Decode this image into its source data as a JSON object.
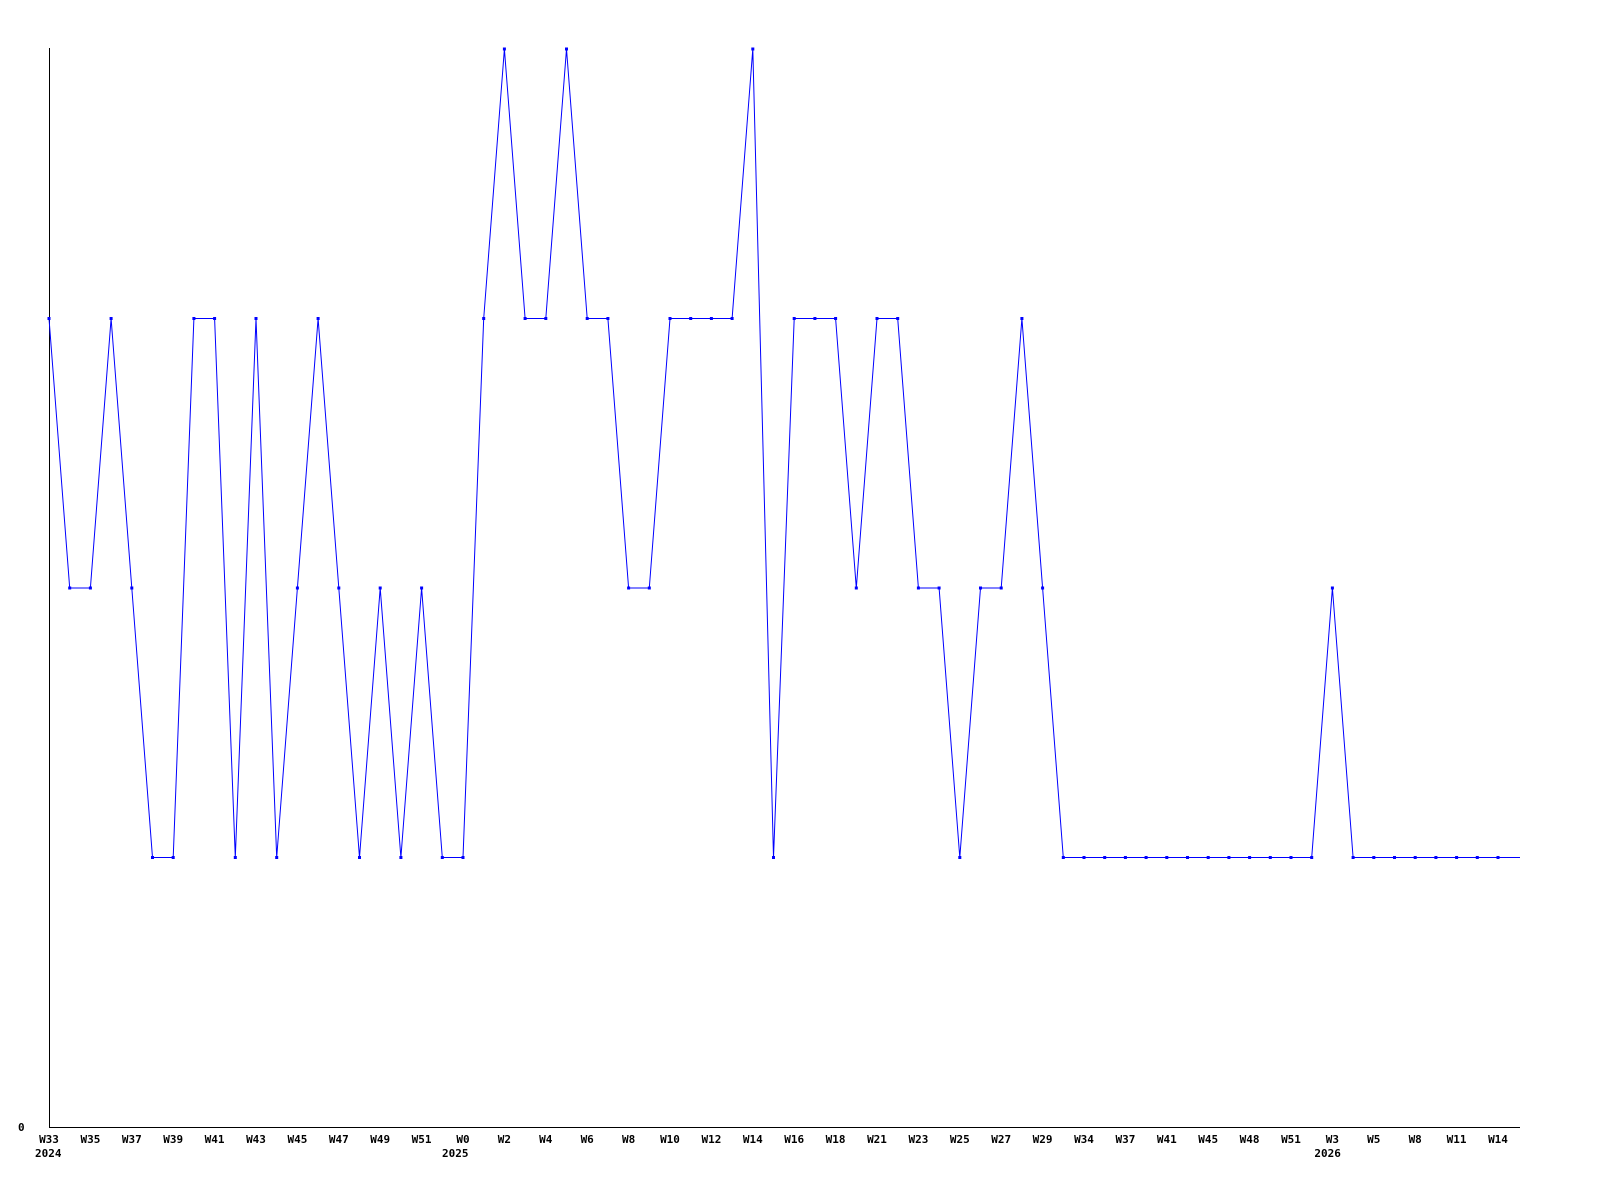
{
  "chart_data": {
    "type": "line",
    "title": "",
    "xlabel": "",
    "ylabel": "",
    "ylim": [
      0,
      4
    ],
    "y_tick_labels": [
      "0"
    ],
    "grid": false,
    "line_color": "#0000ff",
    "axis_color": "#000000",
    "categories": [
      "W33",
      "",
      "W35",
      "",
      "W37",
      "",
      "W39",
      "",
      "W41",
      "",
      "W43",
      "",
      "W45",
      "",
      "W47",
      "",
      "W49",
      "",
      "W51",
      "",
      "W0",
      "",
      "W2",
      "",
      "W4",
      "",
      "W6",
      "",
      "W8",
      "",
      "W10",
      "",
      "W12",
      "",
      "W14",
      "",
      "W16",
      "",
      "W18",
      "",
      "W21",
      "",
      "W23",
      "",
      "W25",
      "",
      "W27",
      "",
      "W29",
      "",
      "W34",
      "",
      "W37",
      "",
      "W41",
      "",
      "W45",
      "",
      "W48",
      "",
      "W51",
      "",
      "W3",
      "",
      "W5",
      "",
      "W8",
      "",
      "W11",
      "",
      "W14",
      ""
    ],
    "year_labels": [
      {
        "index": 0,
        "label": "2024"
      },
      {
        "index": 20,
        "label": "2025"
      },
      {
        "index": 62,
        "label": "2026"
      }
    ],
    "values": [
      3,
      2,
      2,
      3,
      2,
      1,
      1,
      3,
      3,
      1,
      3,
      1,
      2,
      3,
      2,
      1,
      2,
      1,
      2,
      1,
      1,
      3,
      4,
      3,
      3,
      4,
      3,
      3,
      2,
      2,
      3,
      3,
      3,
      3,
      4,
      1,
      3,
      3,
      3,
      2,
      3,
      3,
      2,
      2,
      1,
      2,
      2,
      3,
      2,
      1,
      1,
      1,
      1,
      1,
      1,
      1,
      1,
      1,
      1,
      1,
      1,
      1,
      2,
      1,
      1,
      1,
      1,
      1,
      1,
      1,
      1,
      1
    ]
  }
}
